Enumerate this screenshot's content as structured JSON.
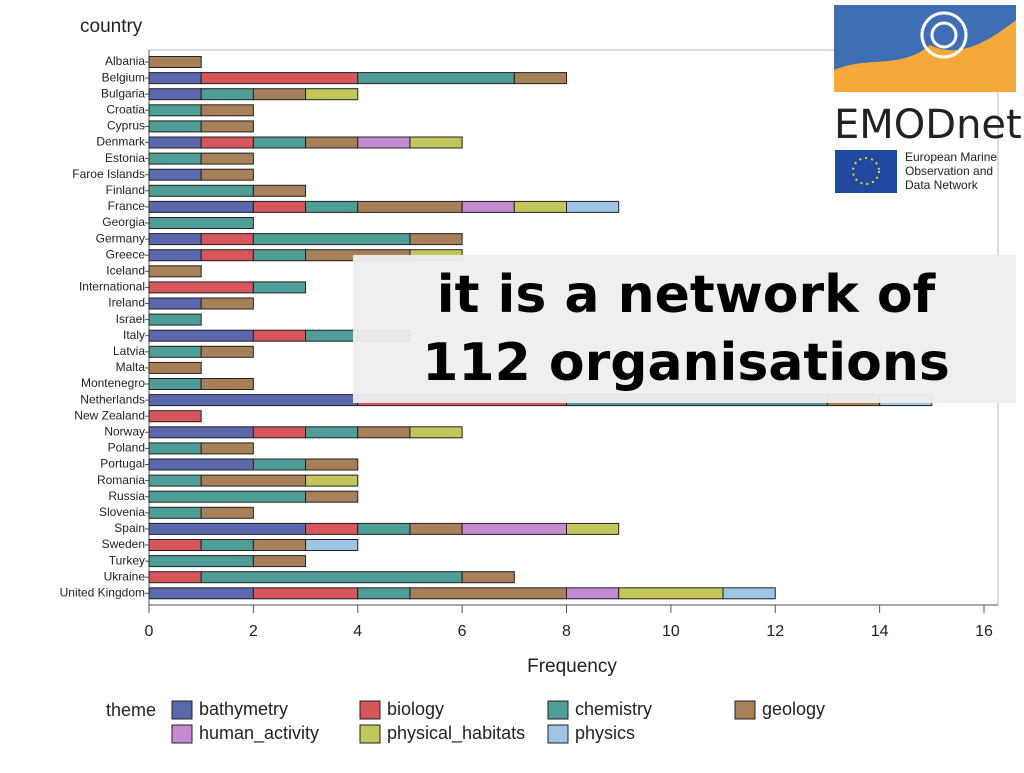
{
  "chart_data": {
    "type": "stacked_barh",
    "y_axis_label": "country",
    "x_axis_label": "Frequency",
    "legend_title": "theme",
    "categories": [
      "Albania",
      "Belgium",
      "Bulgaria",
      "Croatia",
      "Cyprus",
      "Denmark",
      "Estonia",
      "Faroe Islands",
      "Finland",
      "France",
      "Georgia",
      "Germany",
      "Greece",
      "Iceland",
      "International",
      "Ireland",
      "Israel",
      "Italy",
      "Latvia",
      "Malta",
      "Montenegro",
      "Netherlands",
      "New Zealand",
      "Norway",
      "Poland",
      "Portugal",
      "Romania",
      "Russia",
      "Slovenia",
      "Spain",
      "Sweden",
      "Turkey",
      "Ukraine",
      "United Kingdom"
    ],
    "series": [
      {
        "name": "bathymetry",
        "color": "#5b68ad",
        "values": [
          0,
          1,
          1,
          0,
          0,
          1,
          0,
          1,
          0,
          2,
          0,
          1,
          1,
          0,
          0,
          1,
          0,
          2,
          0,
          0,
          0,
          4,
          0,
          2,
          0,
          2,
          0,
          0,
          0,
          3,
          0,
          0,
          0,
          2
        ]
      },
      {
        "name": "biology",
        "color": "#d6565c",
        "values": [
          0,
          3,
          0,
          0,
          0,
          1,
          0,
          0,
          0,
          1,
          0,
          1,
          1,
          0,
          2,
          0,
          0,
          1,
          0,
          0,
          0,
          4,
          1,
          1,
          0,
          0,
          0,
          0,
          0,
          1,
          1,
          0,
          1,
          2
        ]
      },
      {
        "name": "chemistry",
        "color": "#4f9d97",
        "values": [
          0,
          3,
          1,
          1,
          1,
          1,
          1,
          0,
          2,
          1,
          2,
          3,
          1,
          0,
          1,
          0,
          1,
          1,
          1,
          0,
          1,
          5,
          0,
          1,
          1,
          1,
          1,
          3,
          1,
          1,
          1,
          2,
          5,
          1
        ]
      },
      {
        "name": "geology",
        "color": "#a77f58",
        "values": [
          1,
          1,
          1,
          1,
          1,
          1,
          1,
          1,
          1,
          2,
          0,
          1,
          2,
          1,
          0,
          1,
          0,
          1,
          1,
          1,
          1,
          1,
          0,
          1,
          1,
          1,
          2,
          1,
          1,
          1,
          1,
          1,
          1,
          3
        ]
      },
      {
        "name": "human_activity",
        "color": "#c48bd3",
        "values": [
          0,
          0,
          0,
          0,
          0,
          1,
          0,
          0,
          0,
          1,
          0,
          0,
          0,
          0,
          0,
          0,
          0,
          0,
          0,
          0,
          0,
          0,
          0,
          0,
          0,
          0,
          0,
          0,
          0,
          2,
          0,
          0,
          0,
          1
        ]
      },
      {
        "name": "physical_habitats",
        "color": "#c3c65b",
        "values": [
          0,
          0,
          1,
          0,
          0,
          1,
          0,
          0,
          0,
          1,
          0,
          0,
          1,
          0,
          0,
          0,
          0,
          0,
          0,
          0,
          0,
          0,
          0,
          1,
          0,
          0,
          1,
          0,
          0,
          1,
          0,
          0,
          0,
          2
        ]
      },
      {
        "name": "physics",
        "color": "#9ec4e6",
        "values": [
          0,
          0,
          0,
          0,
          0,
          0,
          0,
          0,
          0,
          1,
          0,
          0,
          0,
          0,
          0,
          0,
          0,
          0,
          0,
          0,
          0,
          1,
          0,
          0,
          0,
          0,
          0,
          0,
          0,
          0,
          1,
          0,
          0,
          1
        ]
      }
    ],
    "xlim": [
      0,
      16
    ],
    "xticks": [
      0,
      2,
      4,
      6,
      8,
      10,
      12,
      14,
      16
    ]
  },
  "overlay": {
    "lines": [
      "it is a network of",
      "112 organisations"
    ]
  },
  "logo": {
    "name": "EMODnet",
    "tagline": [
      "European Marine",
      "Observation and",
      "Data Network"
    ]
  }
}
